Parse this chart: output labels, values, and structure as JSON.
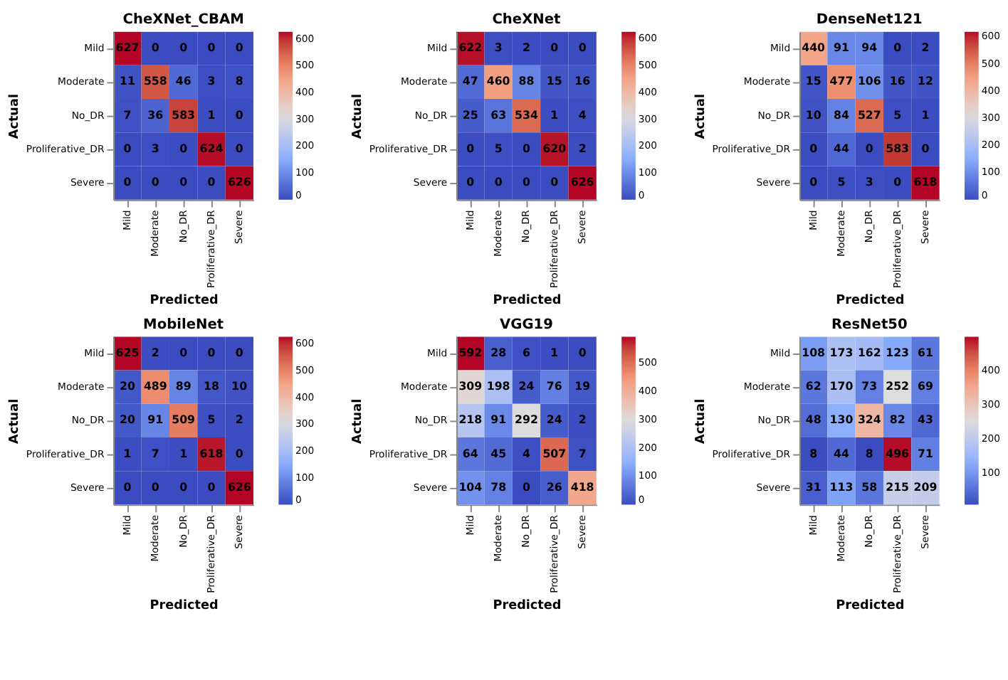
{
  "chart_data": [
    {
      "type": "heatmap",
      "title": "CheXNet_CBAM",
      "xlabel": "Predicted",
      "ylabel": "Actual",
      "categories": [
        "Mild",
        "Moderate",
        "No_DR",
        "Proliferative_DR",
        "Severe"
      ],
      "y_categories": [
        "Mild",
        "Moderate",
        "No_DR",
        "Proliferative_DR",
        "Severe"
      ],
      "cells": [
        [
          627,
          0,
          0,
          0,
          0
        ],
        [
          11,
          558,
          46,
          3,
          8
        ],
        [
          7,
          36,
          583,
          1,
          0
        ],
        [
          0,
          3,
          0,
          624,
          0
        ],
        [
          0,
          0,
          0,
          0,
          626
        ]
      ],
      "clim": [
        0,
        627
      ],
      "cticks": [
        0,
        100,
        200,
        300,
        400,
        500,
        600
      ],
      "data_labels": true
    },
    {
      "type": "heatmap",
      "title": "CheXNet",
      "xlabel": "Predicted",
      "ylabel": "Actual",
      "categories": [
        "Mild",
        "Moderate",
        "No_DR",
        "Proliferative_DR",
        "Severe"
      ],
      "y_categories": [
        "Mild",
        "Moderate",
        "No_DR",
        "Proliferative_DR",
        "Severe"
      ],
      "cells": [
        [
          622,
          3,
          2,
          0,
          0
        ],
        [
          47,
          460,
          88,
          15,
          16
        ],
        [
          25,
          63,
          534,
          1,
          4
        ],
        [
          0,
          5,
          0,
          620,
          2
        ],
        [
          0,
          0,
          0,
          0,
          626
        ]
      ],
      "clim": [
        0,
        626
      ],
      "cticks": [
        0,
        100,
        200,
        300,
        400,
        500,
        600
      ],
      "data_labels": true
    },
    {
      "type": "heatmap",
      "title": "DenseNet121",
      "xlabel": "Predicted",
      "ylabel": "Actual",
      "categories": [
        "Mild",
        "Moderate",
        "No_DR",
        "Proliferative_DR",
        "Severe"
      ],
      "y_categories": [
        "Mild",
        "Moderate",
        "No_DR",
        "Proliferative_DR",
        "Severe"
      ],
      "cells": [
        [
          440,
          91,
          94,
          0,
          2
        ],
        [
          15,
          477,
          106,
          16,
          12
        ],
        [
          10,
          84,
          527,
          5,
          1
        ],
        [
          0,
          44,
          0,
          583,
          0
        ],
        [
          0,
          5,
          3,
          0,
          618
        ]
      ],
      "clim": [
        0,
        618
      ],
      "cticks": [
        0,
        100,
        200,
        300,
        400,
        500,
        600
      ],
      "data_labels": true
    },
    {
      "type": "heatmap",
      "title": "MobileNet",
      "xlabel": "Predicted",
      "ylabel": "Actual",
      "categories": [
        "Mild",
        "Moderate",
        "No_DR",
        "Proliferative_DR",
        "Severe"
      ],
      "y_categories": [
        "Mild",
        "Moderate",
        "No_DR",
        "Proliferative_DR",
        "Severe"
      ],
      "cells": [
        [
          625,
          2,
          0,
          0,
          0
        ],
        [
          20,
          489,
          89,
          18,
          10
        ],
        [
          20,
          91,
          509,
          5,
          2
        ],
        [
          1,
          7,
          1,
          618,
          0
        ],
        [
          0,
          0,
          0,
          0,
          626
        ]
      ],
      "clim": [
        0,
        626
      ],
      "cticks": [
        0,
        100,
        200,
        300,
        400,
        500,
        600
      ],
      "data_labels": true
    },
    {
      "type": "heatmap",
      "title": "VGG19",
      "xlabel": "Predicted",
      "ylabel": "Actual",
      "categories": [
        "Mild",
        "Moderate",
        "No_DR",
        "Proliferative_DR",
        "Severe"
      ],
      "y_categories": [
        "Mild",
        "Moderate",
        "No_DR",
        "Proliferative_DR",
        "Severe"
      ],
      "cells": [
        [
          592,
          28,
          6,
          1,
          0
        ],
        [
          309,
          198,
          24,
          76,
          19
        ],
        [
          218,
          91,
          292,
          24,
          2
        ],
        [
          64,
          45,
          4,
          507,
          7
        ],
        [
          104,
          78,
          0,
          26,
          418
        ]
      ],
      "clim": [
        0,
        592
      ],
      "cticks": [
        0,
        100,
        200,
        300,
        400,
        500
      ],
      "data_labels": true
    },
    {
      "type": "heatmap",
      "title": "ResNet50",
      "xlabel": "Predicted",
      "ylabel": "Actual",
      "categories": [
        "Mild",
        "Moderate",
        "No_DR",
        "Proliferative_DR",
        "Severe"
      ],
      "y_categories": [
        "Mild",
        "Moderate",
        "No_DR",
        "Proliferative_DR",
        "Severe"
      ],
      "cells": [
        [
          108,
          173,
          162,
          123,
          61
        ],
        [
          62,
          170,
          73,
          252,
          69
        ],
        [
          48,
          130,
          324,
          82,
          43
        ],
        [
          8,
          44,
          8,
          496,
          71
        ],
        [
          31,
          113,
          58,
          215,
          209
        ]
      ],
      "clim": [
        8,
        498
      ],
      "cticks": [
        100,
        200,
        300,
        400
      ],
      "data_labels": true
    }
  ]
}
